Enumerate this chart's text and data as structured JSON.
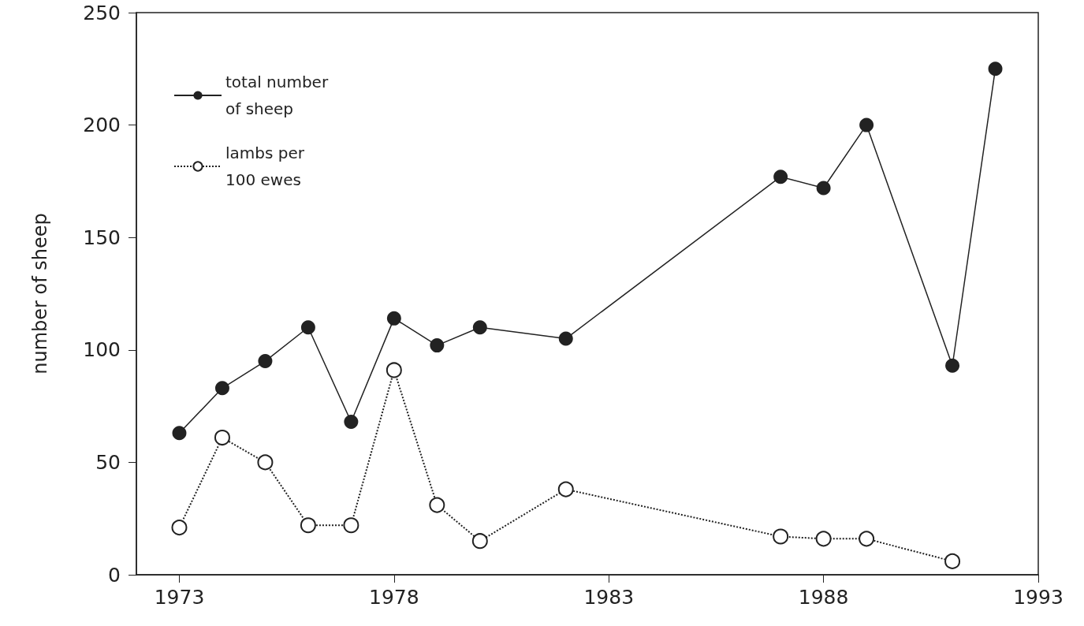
{
  "chart_data": {
    "type": "line",
    "ylabel": "number of sheep",
    "x": [
      1973,
      1974,
      1975,
      1976,
      1977,
      1978,
      1979,
      1980,
      1982,
      1987,
      1988,
      1989,
      1991,
      1992
    ],
    "series": [
      {
        "name": "total number of sheep",
        "color": "#222222",
        "marker": "circle",
        "line_style": "solid",
        "values": [
          63,
          83,
          95,
          110,
          68,
          114,
          102,
          110,
          105,
          177,
          172,
          200,
          93,
          225
        ]
      },
      {
        "name": "lambs per 100 ewes",
        "color": "#222222",
        "marker": "circle",
        "line_style": "dotted",
        "values": [
          21,
          61,
          50,
          22,
          22,
          91,
          31,
          15,
          38,
          17,
          16,
          16,
          6,
          null
        ]
      }
    ],
    "xlim": [
      1972,
      1993
    ],
    "xticks": [
      1973,
      1978,
      1983,
      1988,
      1993
    ],
    "ylim": [
      0,
      250
    ],
    "yticks": [
      0,
      50,
      100,
      150,
      200,
      250
    ],
    "grid": false,
    "legend": "top left"
  }
}
